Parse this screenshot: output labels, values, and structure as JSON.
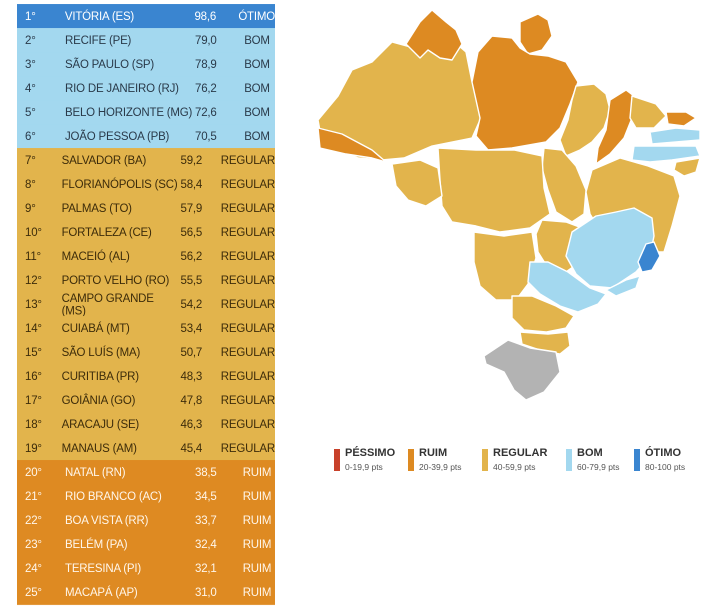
{
  "ranking": [
    {
      "rank": "1°",
      "city": "VITÓRIA (ES)",
      "score": "98,6",
      "status": "ÓTIMO",
      "category": "otimo"
    },
    {
      "rank": "2°",
      "city": "RECIFE (PE)",
      "score": "79,0",
      "status": "BOM",
      "category": "bom"
    },
    {
      "rank": "3°",
      "city": "SÃO PAULO (SP)",
      "score": "78,9",
      "status": "BOM",
      "category": "bom"
    },
    {
      "rank": "4°",
      "city": "RIO DE JANEIRO (RJ)",
      "score": "76,2",
      "status": "BOM",
      "category": "bom"
    },
    {
      "rank": "5°",
      "city": "BELO HORIZONTE (MG)",
      "score": "72,6",
      "status": "BOM",
      "category": "bom"
    },
    {
      "rank": "6°",
      "city": "JOÃO PESSOA (PB)",
      "score": "70,5",
      "status": "BOM",
      "category": "bom"
    },
    {
      "rank": "7°",
      "city": "SALVADOR (BA)",
      "score": "59,2",
      "status": "REGULAR",
      "category": "regular"
    },
    {
      "rank": "8°",
      "city": "FLORIANÓPOLIS (SC)",
      "score": "58,4",
      "status": "REGULAR",
      "category": "regular"
    },
    {
      "rank": "9°",
      "city": "PALMAS (TO)",
      "score": "57,9",
      "status": "REGULAR",
      "category": "regular"
    },
    {
      "rank": "10°",
      "city": "FORTALEZA (CE)",
      "score": "56,5",
      "status": "REGULAR",
      "category": "regular"
    },
    {
      "rank": "11°",
      "city": "MACEIÓ (AL)",
      "score": "56,2",
      "status": "REGULAR",
      "category": "regular"
    },
    {
      "rank": "12°",
      "city": "PORTO VELHO (RO)",
      "score": "55,5",
      "status": "REGULAR",
      "category": "regular"
    },
    {
      "rank": "13°",
      "city": "CAMPO GRANDE (MS)",
      "score": "54,2",
      "status": "REGULAR",
      "category": "regular"
    },
    {
      "rank": "14°",
      "city": "CUIABÁ (MT)",
      "score": "53,4",
      "status": "REGULAR",
      "category": "regular"
    },
    {
      "rank": "15°",
      "city": "SÃO LUÍS (MA)",
      "score": "50,7",
      "status": "REGULAR",
      "category": "regular"
    },
    {
      "rank": "16°",
      "city": "CURITIBA (PR)",
      "score": "48,3",
      "status": "REGULAR",
      "category": "regular"
    },
    {
      "rank": "17°",
      "city": "GOIÂNIA (GO)",
      "score": "47,8",
      "status": "REGULAR",
      "category": "regular"
    },
    {
      "rank": "18°",
      "city": "ARACAJU (SE)",
      "score": "46,3",
      "status": "REGULAR",
      "category": "regular"
    },
    {
      "rank": "19°",
      "city": "MANAUS (AM)",
      "score": "45,4",
      "status": "REGULAR",
      "category": "regular"
    },
    {
      "rank": "20°",
      "city": "NATAL (RN)",
      "score": "38,5",
      "status": "RUIM",
      "category": "ruim"
    },
    {
      "rank": "21°",
      "city": "RIO BRANCO (AC)",
      "score": "34,5",
      "status": "RUIM",
      "category": "ruim"
    },
    {
      "rank": "22°",
      "city": "BOA VISTA (RR)",
      "score": "33,7",
      "status": "RUIM",
      "category": "ruim"
    },
    {
      "rank": "23°",
      "city": "BELÉM (PA)",
      "score": "32,4",
      "status": "RUIM",
      "category": "ruim"
    },
    {
      "rank": "24°",
      "city": "TERESINA (PI)",
      "score": "32,1",
      "status": "RUIM",
      "category": "ruim"
    },
    {
      "rank": "25°",
      "city": "MACAPÁ (AP)",
      "score": "31,0",
      "status": "RUIM",
      "category": "ruim"
    }
  ],
  "legend": [
    {
      "label": "PÉSSIMO",
      "range": "0-19,9 pts",
      "color": "#c8412a"
    },
    {
      "label": "RUIM",
      "range": "20-39,9 pts",
      "color": "#dd8a22"
    },
    {
      "label": "REGULAR",
      "range": "40-59,9 pts",
      "color": "#e2b44c"
    },
    {
      "label": "BOM",
      "range": "60-79,9 pts",
      "color": "#a3d8ef"
    },
    {
      "label": "ÓTIMO",
      "range": "80-100 pts",
      "color": "#3a85d0"
    }
  ],
  "map": {
    "colors": {
      "regular": "#e2b44c",
      "ruim": "#dd8a22",
      "bom": "#a3d8ef",
      "otimo": "#3a85d0",
      "no_data": "#b3b3b3",
      "border": "#ffffff"
    }
  }
}
